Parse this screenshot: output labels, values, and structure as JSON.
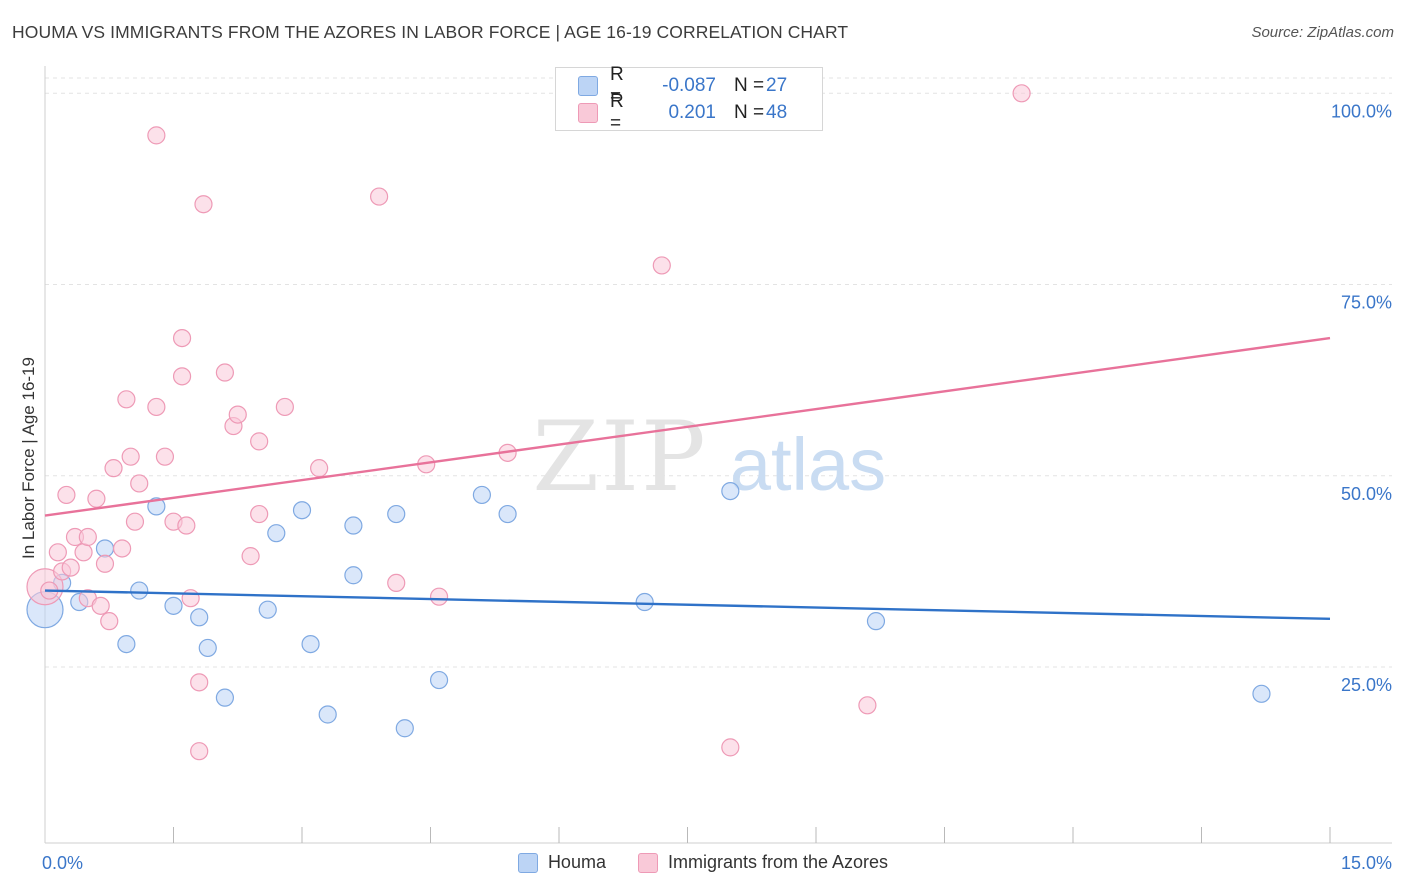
{
  "title": "HOUMA VS IMMIGRANTS FROM THE AZORES IN LABOR FORCE | AGE 16-19 CORRELATION CHART",
  "source": "Source: ZipAtlas.com",
  "watermark": {
    "zip": "ZIP",
    "atlas": "atlas"
  },
  "colors": {
    "houma_fill": "#bcd4f5",
    "houma_stroke": "#7fa9e2",
    "houma_line": "#2f72c8",
    "azores_fill": "#f9c9d8",
    "azores_stroke": "#ee9ab6",
    "azores_line": "#e8729a",
    "tick_label": "#3a76c9",
    "grid": "#e3e3e3"
  },
  "legend": {
    "rows": [
      {
        "series": "Houma",
        "r_label": "R =",
        "r_value": "-0.087",
        "n_label": "N =",
        "n_value": "27"
      },
      {
        "series": "Immigrants from the Azores",
        "r_label": "R =",
        "r_value": "0.201",
        "n_label": "N =",
        "n_value": "48"
      }
    ]
  },
  "bottom_legend": [
    "Houma",
    "Immigrants from the Azores"
  ],
  "chart_data": {
    "type": "scatter",
    "xlabel": "",
    "ylabel": "In Labor Force | Age 16-19",
    "xlim": [
      0,
      15
    ],
    "ylim": [
      2,
      102
    ],
    "x_tick_labels": [
      {
        "value": 0,
        "label": "0.0%"
      },
      {
        "value": 15,
        "label": "15.0%"
      }
    ],
    "x_minor_ticks": [
      1.5,
      3,
      4.5,
      6,
      7.5,
      9,
      10.5,
      12,
      13.5,
      15
    ],
    "y_ticks": [
      {
        "value": 25,
        "label": "25.0%"
      },
      {
        "value": 50,
        "label": "50.0%"
      },
      {
        "value": 75,
        "label": "75.0%"
      },
      {
        "value": 100,
        "label": "100.0%"
      }
    ],
    "series": [
      {
        "name": "Houma",
        "points": [
          {
            "x": 0.0,
            "y": 32.5,
            "big": true
          },
          {
            "x": 0.2,
            "y": 36.0
          },
          {
            "x": 0.4,
            "y": 33.5
          },
          {
            "x": 0.7,
            "y": 40.5
          },
          {
            "x": 0.95,
            "y": 28.0
          },
          {
            "x": 1.1,
            "y": 35.0
          },
          {
            "x": 1.3,
            "y": 46.0
          },
          {
            "x": 1.5,
            "y": 33.0
          },
          {
            "x": 1.8,
            "y": 31.5
          },
          {
            "x": 1.9,
            "y": 27.5
          },
          {
            "x": 2.1,
            "y": 21.0
          },
          {
            "x": 2.6,
            "y": 32.5
          },
          {
            "x": 2.7,
            "y": 42.5
          },
          {
            "x": 3.0,
            "y": 45.5
          },
          {
            "x": 3.1,
            "y": 28.0
          },
          {
            "x": 3.3,
            "y": 18.8
          },
          {
            "x": 3.6,
            "y": 43.5
          },
          {
            "x": 3.6,
            "y": 37.0
          },
          {
            "x": 4.1,
            "y": 45.0
          },
          {
            "x": 4.2,
            "y": 17.0
          },
          {
            "x": 4.6,
            "y": 23.3
          },
          {
            "x": 5.1,
            "y": 47.5
          },
          {
            "x": 5.4,
            "y": 45.0
          },
          {
            "x": 7.0,
            "y": 33.5
          },
          {
            "x": 8.0,
            "y": 48.0
          },
          {
            "x": 9.7,
            "y": 31.0
          },
          {
            "x": 14.2,
            "y": 21.5
          }
        ],
        "trend": {
          "x0": 0,
          "y0": 35.0,
          "x1": 15,
          "y1": 31.3
        }
      },
      {
        "name": "Immigrants from the Azores",
        "points": [
          {
            "x": 0.0,
            "y": 35.5,
            "big": true
          },
          {
            "x": 0.05,
            "y": 35.0
          },
          {
            "x": 0.15,
            "y": 40.0
          },
          {
            "x": 0.2,
            "y": 37.5
          },
          {
            "x": 0.25,
            "y": 47.5
          },
          {
            "x": 0.3,
            "y": 38.0
          },
          {
            "x": 0.35,
            "y": 42.0
          },
          {
            "x": 0.45,
            "y": 40.0
          },
          {
            "x": 0.5,
            "y": 34.0
          },
          {
            "x": 0.5,
            "y": 42.0
          },
          {
            "x": 0.6,
            "y": 47.0
          },
          {
            "x": 0.65,
            "y": 33.0
          },
          {
            "x": 0.7,
            "y": 38.5
          },
          {
            "x": 0.75,
            "y": 31.0
          },
          {
            "x": 0.8,
            "y": 51.0
          },
          {
            "x": 0.9,
            "y": 40.5
          },
          {
            "x": 0.95,
            "y": 60.0
          },
          {
            "x": 1.0,
            "y": 52.5
          },
          {
            "x": 1.05,
            "y": 44.0
          },
          {
            "x": 1.1,
            "y": 49.0
          },
          {
            "x": 1.3,
            "y": 59.0
          },
          {
            "x": 1.3,
            "y": 94.5
          },
          {
            "x": 1.4,
            "y": 52.5
          },
          {
            "x": 1.5,
            "y": 44.0
          },
          {
            "x": 1.6,
            "y": 68.0
          },
          {
            "x": 1.6,
            "y": 63.0
          },
          {
            "x": 1.65,
            "y": 43.5
          },
          {
            "x": 1.7,
            "y": 34.0
          },
          {
            "x": 1.8,
            "y": 23.0
          },
          {
            "x": 1.8,
            "y": 14.0
          },
          {
            "x": 1.85,
            "y": 85.5
          },
          {
            "x": 2.1,
            "y": 63.5
          },
          {
            "x": 2.2,
            "y": 56.5
          },
          {
            "x": 2.25,
            "y": 58.0
          },
          {
            "x": 2.4,
            "y": 39.5
          },
          {
            "x": 2.5,
            "y": 54.5
          },
          {
            "x": 2.5,
            "y": 45.0
          },
          {
            "x": 2.8,
            "y": 59.0
          },
          {
            "x": 3.2,
            "y": 51.0
          },
          {
            "x": 3.9,
            "y": 86.5
          },
          {
            "x": 4.1,
            "y": 36.0
          },
          {
            "x": 4.45,
            "y": 51.5
          },
          {
            "x": 4.6,
            "y": 34.2
          },
          {
            "x": 5.4,
            "y": 53.0
          },
          {
            "x": 7.2,
            "y": 77.5
          },
          {
            "x": 8.0,
            "y": 14.5
          },
          {
            "x": 9.6,
            "y": 20.0
          },
          {
            "x": 11.4,
            "y": 100.0
          }
        ],
        "trend": {
          "x0": 0,
          "y0": 44.8,
          "x1": 15,
          "y1": 68.0
        }
      }
    ]
  }
}
